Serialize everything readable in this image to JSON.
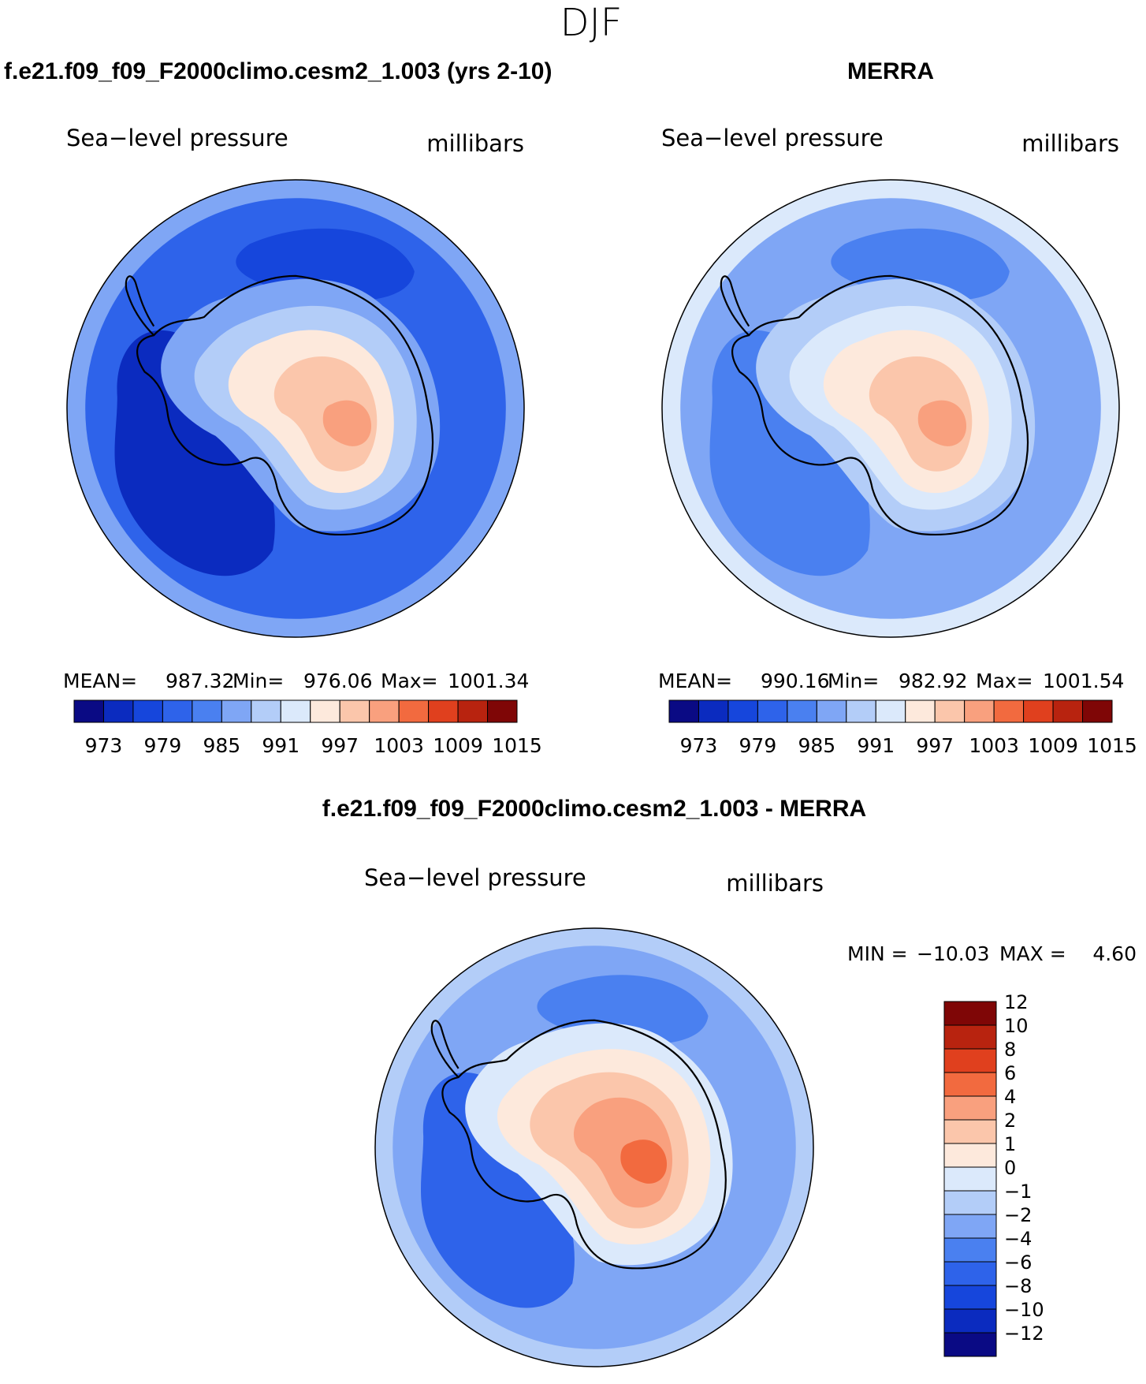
{
  "figure": {
    "season_title": "DJF"
  },
  "chart_data": [
    {
      "type": "heatmap",
      "panel_title": "f.e21.f09_f09_F2000climo.cesm2_1.003 (yrs 2-10)",
      "variable": "Sea−level pressure",
      "units": "millibars",
      "projection": "south-polar stereographic",
      "stats": {
        "mean_label": "MEAN=",
        "mean": "987.32",
        "min_label": "Min=",
        "min": "976.06",
        "max_label": "Max=",
        "max": "1001.34"
      },
      "colorbar": {
        "orientation": "horizontal",
        "levels": [
          "973",
          "976",
          "979",
          "982",
          "985",
          "988",
          "991",
          "994",
          "997",
          "1000",
          "1003",
          "1006",
          "1009",
          "1012",
          "1015"
        ],
        "tick_labels": [
          "973",
          "979",
          "985",
          "991",
          "997",
          "1003",
          "1009",
          "1015"
        ],
        "colors": [
          "#0a0a84",
          "#0b2bbf",
          "#1646dc",
          "#2e63ea",
          "#4a80f0",
          "#7fa6f5",
          "#b3cdf8",
          "#dbe9fb",
          "#fde9dc",
          "#fbc6ab",
          "#f9a07e",
          "#f26a3f",
          "#e0401e",
          "#b8230f",
          "#7f0606"
        ]
      },
      "regions": [
        {
          "name": "outer-ring",
          "bin": 5
        },
        {
          "name": "ocean-belt",
          "bin": 3
        },
        {
          "name": "pacific-low",
          "bin": 1
        },
        {
          "name": "indian-low",
          "bin": 2
        },
        {
          "name": "coast",
          "bin": 5
        },
        {
          "name": "plateau-edge",
          "bin": 6
        },
        {
          "name": "plateau",
          "bin": 8
        },
        {
          "name": "plateau-high",
          "bin": 9
        },
        {
          "name": "plateau-peak",
          "bin": 10
        }
      ]
    },
    {
      "type": "heatmap",
      "panel_title": "MERRA",
      "variable": "Sea−level pressure",
      "units": "millibars",
      "projection": "south-polar stereographic",
      "stats": {
        "mean_label": "MEAN=",
        "mean": "990.16",
        "min_label": "Min=",
        "min": "982.92",
        "max_label": "Max=",
        "max": "1001.54"
      },
      "colorbar": {
        "orientation": "horizontal",
        "levels": [
          "973",
          "976",
          "979",
          "982",
          "985",
          "988",
          "991",
          "994",
          "997",
          "1000",
          "1003",
          "1006",
          "1009",
          "1012",
          "1015"
        ],
        "tick_labels": [
          "973",
          "979",
          "985",
          "991",
          "997",
          "1003",
          "1009",
          "1015"
        ],
        "colors": [
          "#0a0a84",
          "#0b2bbf",
          "#1646dc",
          "#2e63ea",
          "#4a80f0",
          "#7fa6f5",
          "#b3cdf8",
          "#dbe9fb",
          "#fde9dc",
          "#fbc6ab",
          "#f9a07e",
          "#f26a3f",
          "#e0401e",
          "#b8230f",
          "#7f0606"
        ]
      },
      "regions": [
        {
          "name": "outer-ring",
          "bin": 7
        },
        {
          "name": "ocean-belt",
          "bin": 5
        },
        {
          "name": "pacific-low",
          "bin": 4
        },
        {
          "name": "indian-low",
          "bin": 4
        },
        {
          "name": "coast",
          "bin": 6
        },
        {
          "name": "plateau-edge",
          "bin": 7
        },
        {
          "name": "plateau",
          "bin": 8
        },
        {
          "name": "plateau-high",
          "bin": 9
        },
        {
          "name": "plateau-peak",
          "bin": 10
        }
      ]
    },
    {
      "type": "heatmap",
      "panel_title": "f.e21.f09_f09_F2000climo.cesm2_1.003 - MERRA",
      "variable": "Sea−level pressure",
      "units": "millibars",
      "projection": "south-polar stereographic",
      "stats": {
        "min_label": "MIN =",
        "min": "−10.03",
        "max_label": "MAX =",
        "max": "4.60"
      },
      "colorbar": {
        "orientation": "vertical",
        "levels": [
          "−12",
          "−10",
          "−8",
          "−6",
          "−4",
          "−2",
          "−1",
          "0",
          "1",
          "2",
          "4",
          "6",
          "8",
          "10",
          "12"
        ],
        "tick_labels": [
          "−12",
          "−10",
          "−8",
          "−6",
          "−4",
          "−2",
          "−1",
          "0",
          "1",
          "2",
          "4",
          "6",
          "8",
          "10",
          "12"
        ],
        "colors": [
          "#0a0a84",
          "#0b2bbf",
          "#1646dc",
          "#2e63ea",
          "#4a80f0",
          "#7fa6f5",
          "#b3cdf8",
          "#dbe9fb",
          "#fde9dc",
          "#fbc6ab",
          "#f9a07e",
          "#f26a3f",
          "#e0401e",
          "#b8230f",
          "#7f0606"
        ]
      },
      "regions": [
        {
          "name": "outer-ring",
          "bin": 6
        },
        {
          "name": "ocean-belt",
          "bin": 5
        },
        {
          "name": "pacific-low",
          "bin": 3
        },
        {
          "name": "indian-low",
          "bin": 4
        },
        {
          "name": "coast",
          "bin": 7
        },
        {
          "name": "plateau-edge",
          "bin": 8
        },
        {
          "name": "plateau",
          "bin": 9
        },
        {
          "name": "plateau-high",
          "bin": 10
        },
        {
          "name": "plateau-peak",
          "bin": 11
        }
      ]
    }
  ]
}
